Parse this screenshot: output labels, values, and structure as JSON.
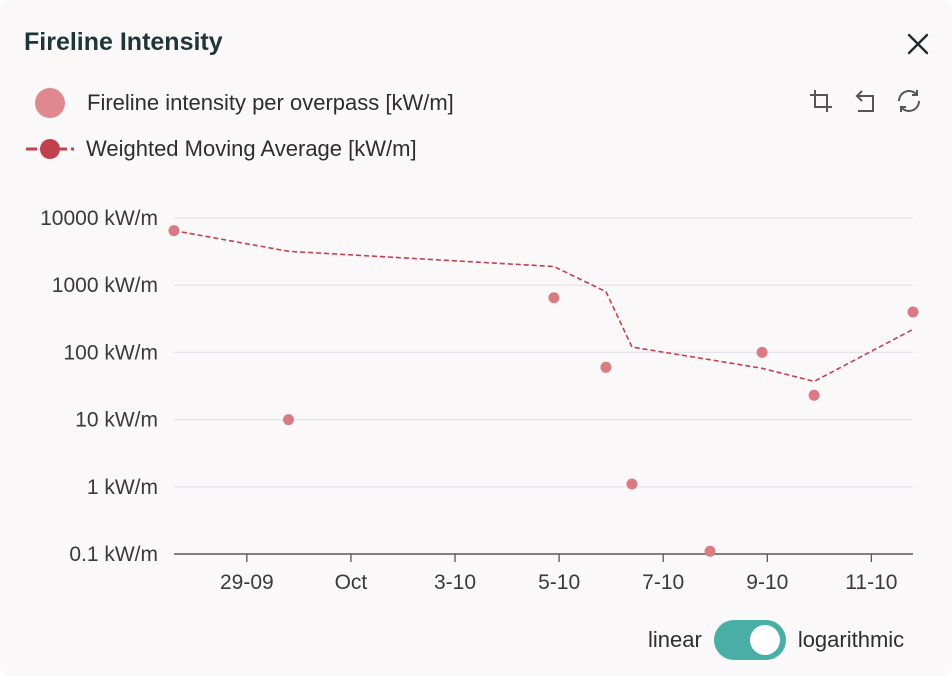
{
  "header": {
    "title": "Fireline Intensity"
  },
  "icons": {
    "close": "close-icon",
    "toolbar": [
      "crop-icon",
      "undo-icon",
      "refresh-icon"
    ]
  },
  "legend": {
    "points_label": "Fireline intensity per overpass [kW/m]",
    "line_label": "Weighted Moving Average [kW/m]"
  },
  "toggle": {
    "left_label": "linear",
    "right_label": "logarithmic",
    "state": "logarithmic"
  },
  "colors": {
    "points": "#d97b84",
    "line": "#c1404e",
    "grid": "#e2e4ea",
    "toggle": "#48aea6"
  },
  "chart_data": {
    "type": "scatter",
    "yscale": "log",
    "y_tick_labels": [
      "10000 kW/m",
      "1000 kW/m",
      "100 kW/m",
      "10 kW/m",
      "1 kW/m",
      "0.1 kW/m"
    ],
    "y_tick_values": [
      10000,
      1000,
      100,
      10,
      1,
      0.1
    ],
    "x_tick_labels": [
      "29-09",
      "Oct",
      "3-10",
      "5-10",
      "7-10",
      "9-10",
      "11-10"
    ],
    "x_tick_values": [
      29,
      31,
      33,
      35,
      37,
      39,
      41
    ],
    "xlim": [
      27.6,
      41.8
    ],
    "ylim": [
      0.1,
      10000
    ],
    "series": [
      {
        "name": "Fireline intensity per overpass [kW/m]",
        "kind": "points",
        "x": [
          27.6,
          29.8,
          34.9,
          35.9,
          36.4,
          37.9,
          38.9,
          39.9,
          41.8
        ],
        "y": [
          6500,
          10,
          650,
          60,
          1.1,
          0.11,
          100,
          23,
          400
        ]
      },
      {
        "name": "Weighted Moving Average [kW/m]",
        "kind": "dashed-line",
        "x": [
          27.6,
          29.8,
          34.9,
          35.9,
          36.4,
          37.9,
          38.9,
          39.9,
          41.8
        ],
        "y": [
          6500,
          3200,
          1900,
          800,
          120,
          78,
          58,
          37,
          220
        ]
      }
    ]
  }
}
